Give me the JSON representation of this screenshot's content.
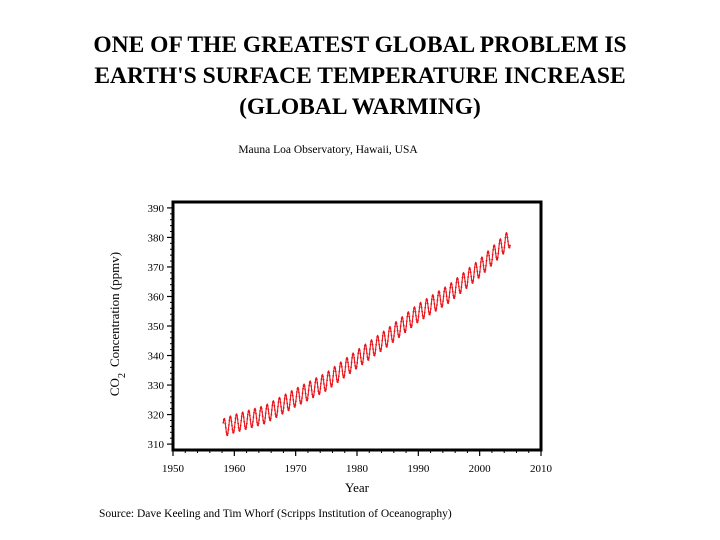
{
  "slide": {
    "title_lines": [
      "ONE OF THE GREATEST GLOBAL PROBLEM IS",
      "EARTH'S SURFACE TEMPERATURE INCREASE",
      "(GLOBAL WARMING)"
    ]
  },
  "figure": {
    "caption": "Source: Dave Keeling and Tim Whorf (Scripps Institution of Oceanography)"
  },
  "chart_data": {
    "type": "line",
    "title": "Mauna Loa Observatory, Hawaii, USA",
    "xlabel": "Year",
    "ylabel_main": "CO",
    "ylabel_sub": "2",
    "ylabel_rest": "Concentration (ppmv)",
    "xlim": [
      1950,
      2010
    ],
    "ylim": [
      308,
      392
    ],
    "xticks": [
      1950,
      1960,
      1970,
      1980,
      1990,
      2000,
      2010
    ],
    "yticks": [
      310,
      320,
      330,
      340,
      350,
      360,
      370,
      380,
      390
    ],
    "grid": false,
    "legend": "none",
    "series": [
      {
        "color": "#e8141b",
        "seasonal_amplitude_ppmv": 3,
        "trend": {
          "x": [
            1958,
            1960,
            1965,
            1970,
            1975,
            1980,
            1985,
            1990,
            1995,
            2000,
            2005
          ],
          "y": [
            315.3,
            316.9,
            320.0,
            325.7,
            331.1,
            338.7,
            346.1,
            354.4,
            360.9,
            369.5,
            379.8
          ]
        }
      }
    ]
  }
}
